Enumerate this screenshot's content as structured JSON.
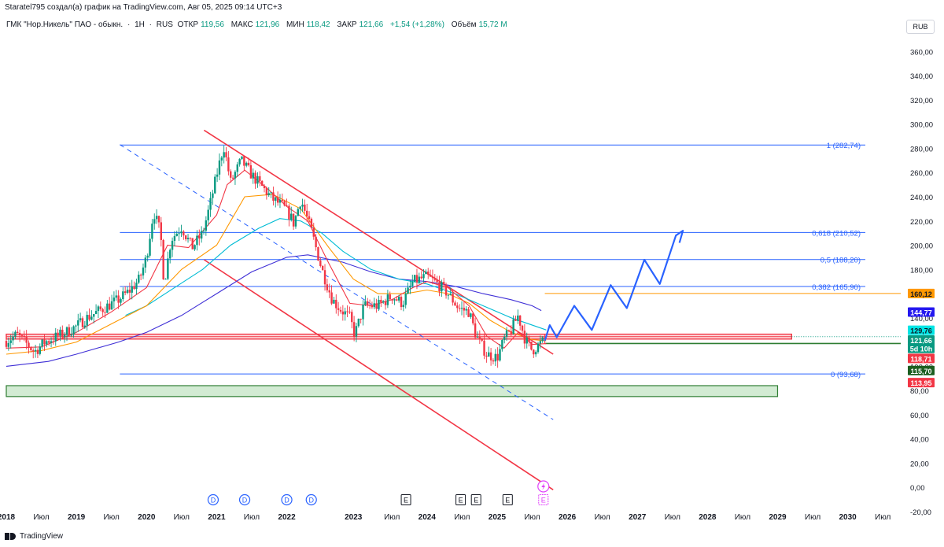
{
  "header": {
    "author_line": "Staratel795 создал(а) график на TradingView.com, Авг 05, 2025 09:14 UTC+3"
  },
  "legend": {
    "symbol": "ГМК \"Нор.Никель\" ПАО - обыкн.",
    "sep": "·",
    "interval": "1Н",
    "exchange": "RUS",
    "open_label": "ОТКР",
    "open_value": "119,56",
    "high_label": "МАКС",
    "high_value": "121,96",
    "low_label": "МИН",
    "low_value": "118,42",
    "close_label": "ЗАКР",
    "close_value": "121,66",
    "change": "+1,54 (+1,28%)",
    "volume_label": "Объём",
    "volume_value": "15,72 M"
  },
  "currency_button": "RUB",
  "brand": "TradingView",
  "colors": {
    "candle_up": "#089981",
    "candle_down": "#f23645",
    "fib": "#2962ff",
    "channel": "#f23645",
    "forecast": "#2962ff",
    "ema_fast": "#f23645",
    "ema_mid": "#ff9800",
    "ema_slow": "#00bcd4",
    "ma_long": "#3f2fd6",
    "support_green": "#2e7d32",
    "resistance_red": "#f23645"
  },
  "chart_data": {
    "type": "candlestick",
    "title": "ГМК \"Нор.Никель\" ПАО - обыкн.",
    "y_scale": "linear",
    "ylim": [
      -20,
      370
    ],
    "ytick_labels": [
      "360,00",
      "340,00",
      "320,00",
      "300,00",
      "280,00",
      "260,00",
      "240,00",
      "220,00",
      "200,00",
      "180,00",
      "160,00",
      "140,00",
      "120,00",
      "100,00",
      "80,00",
      "60,00",
      "40,00",
      "20,00",
      "0,00",
      "-20,00"
    ],
    "ytick_values": [
      360,
      340,
      320,
      300,
      280,
      260,
      240,
      220,
      200,
      180,
      160,
      140,
      120,
      100,
      80,
      60,
      40,
      20,
      0,
      -20
    ],
    "xlim": [
      2018.0,
      2030.7
    ],
    "x_tick_labels": [
      "2018",
      "Июл",
      "2019",
      "Июл",
      "2020",
      "Июл",
      "2021",
      "Июл",
      "2022",
      "2023",
      "Июл",
      "2024",
      "Июл",
      "2025",
      "Июл",
      "2026",
      "Июл",
      "2027",
      "Июл",
      "2028",
      "Июл",
      "2029",
      "Июл",
      "2030",
      "Июл"
    ],
    "x_tick_values": [
      2018.0,
      2018.5,
      2019.0,
      2019.5,
      2020.0,
      2020.5,
      2021.0,
      2021.5,
      2022.0,
      2022.95,
      2023.5,
      2024.0,
      2024.5,
      2025.0,
      2025.5,
      2026.0,
      2026.5,
      2027.0,
      2027.5,
      2028.0,
      2028.5,
      2029.0,
      2029.5,
      2030.0,
      2030.5
    ],
    "price_path": [
      [
        2018.0,
        121
      ],
      [
        2018.15,
        126
      ],
      [
        2018.3,
        118
      ],
      [
        2018.4,
        112
      ],
      [
        2018.55,
        120
      ],
      [
        2018.7,
        124
      ],
      [
        2018.85,
        128
      ],
      [
        2019.0,
        133
      ],
      [
        2019.15,
        140
      ],
      [
        2019.3,
        145
      ],
      [
        2019.45,
        150
      ],
      [
        2019.6,
        155
      ],
      [
        2019.75,
        162
      ],
      [
        2019.9,
        172
      ],
      [
        2020.0,
        190
      ],
      [
        2020.1,
        228
      ],
      [
        2020.2,
        210
      ],
      [
        2020.25,
        168
      ],
      [
        2020.35,
        205
      ],
      [
        2020.5,
        215
      ],
      [
        2020.65,
        198
      ],
      [
        2020.8,
        210
      ],
      [
        2020.9,
        232
      ],
      [
        2021.0,
        258
      ],
      [
        2021.1,
        282
      ],
      [
        2021.2,
        252
      ],
      [
        2021.35,
        270
      ],
      [
        2021.5,
        258
      ],
      [
        2021.65,
        248
      ],
      [
        2021.8,
        238
      ],
      [
        2021.95,
        232
      ],
      [
        2022.05,
        224
      ],
      [
        2022.1,
        218
      ],
      [
        2022.2,
        238
      ],
      [
        2022.35,
        212
      ],
      [
        2022.5,
        180
      ],
      [
        2022.65,
        155
      ],
      [
        2022.75,
        148
      ],
      [
        2022.9,
        140
      ],
      [
        2022.97,
        126
      ],
      [
        2023.1,
        150
      ],
      [
        2023.3,
        150
      ],
      [
        2023.5,
        158
      ],
      [
        2023.65,
        152
      ],
      [
        2023.8,
        170
      ],
      [
        2024.0,
        174
      ],
      [
        2024.15,
        168
      ],
      [
        2024.3,
        160
      ],
      [
        2024.45,
        148
      ],
      [
        2024.6,
        145
      ],
      [
        2024.7,
        125
      ],
      [
        2024.85,
        110
      ],
      [
        2025.0,
        107
      ],
      [
        2025.1,
        122
      ],
      [
        2025.2,
        130
      ],
      [
        2025.3,
        142
      ],
      [
        2025.4,
        122
      ],
      [
        2025.5,
        113
      ],
      [
        2025.6,
        118
      ],
      [
        2025.68,
        121.66
      ]
    ],
    "ema_fast": [
      [
        2018.0,
        115
      ],
      [
        2018.5,
        116
      ],
      [
        2019.0,
        128
      ],
      [
        2019.5,
        145
      ],
      [
        2020.0,
        165
      ],
      [
        2020.3,
        200
      ],
      [
        2020.6,
        198
      ],
      [
        2021.0,
        225
      ],
      [
        2021.15,
        250
      ],
      [
        2021.4,
        262
      ],
      [
        2021.7,
        248
      ],
      [
        2022.0,
        232
      ],
      [
        2022.3,
        220
      ],
      [
        2022.6,
        185
      ],
      [
        2022.9,
        152
      ],
      [
        2023.2,
        150
      ],
      [
        2023.5,
        155
      ],
      [
        2023.8,
        165
      ],
      [
        2024.0,
        170
      ],
      [
        2024.3,
        165
      ],
      [
        2024.6,
        150
      ],
      [
        2024.85,
        125
      ],
      [
        2025.1,
        115
      ],
      [
        2025.3,
        128
      ],
      [
        2025.5,
        118
      ],
      [
        2025.7,
        118.7
      ]
    ],
    "ema_mid": [
      [
        2018.0,
        110
      ],
      [
        2018.5,
        113
      ],
      [
        2019.0,
        120
      ],
      [
        2019.5,
        135
      ],
      [
        2020.0,
        150
      ],
      [
        2020.5,
        180
      ],
      [
        2021.0,
        200
      ],
      [
        2021.4,
        240
      ],
      [
        2021.8,
        242
      ],
      [
        2022.2,
        230
      ],
      [
        2022.6,
        198
      ],
      [
        2022.95,
        172
      ],
      [
        2023.3,
        160
      ],
      [
        2023.7,
        160
      ],
      [
        2024.0,
        163
      ],
      [
        2024.3,
        160
      ],
      [
        2024.6,
        152
      ],
      [
        2024.9,
        138
      ],
      [
        2025.2,
        128
      ],
      [
        2025.5,
        122
      ],
      [
        2025.7,
        121
      ]
    ],
    "ema_slow": [
      [
        2019.7,
        142
      ],
      [
        2020.0,
        150
      ],
      [
        2020.4,
        165
      ],
      [
        2020.8,
        180
      ],
      [
        2021.2,
        200
      ],
      [
        2021.6,
        214
      ],
      [
        2021.9,
        222
      ],
      [
        2022.2,
        220
      ],
      [
        2022.5,
        210
      ],
      [
        2022.8,
        195
      ],
      [
        2023.2,
        180
      ],
      [
        2023.6,
        172
      ],
      [
        2024.0,
        168
      ],
      [
        2024.4,
        160
      ],
      [
        2024.8,
        150
      ],
      [
        2025.2,
        140
      ],
      [
        2025.7,
        130
      ]
    ],
    "ma_long": [
      [
        2018.0,
        100
      ],
      [
        2018.6,
        104
      ],
      [
        2019.0,
        110
      ],
      [
        2019.6,
        120
      ],
      [
        2020.0,
        128
      ],
      [
        2020.5,
        142
      ],
      [
        2021.0,
        160
      ],
      [
        2021.5,
        178
      ],
      [
        2022.0,
        190
      ],
      [
        2022.3,
        192
      ],
      [
        2022.8,
        186
      ],
      [
        2023.2,
        178
      ],
      [
        2023.6,
        172
      ],
      [
        2024.0,
        170
      ],
      [
        2024.4,
        166
      ],
      [
        2024.8,
        160
      ],
      [
        2025.2,
        155
      ],
      [
        2025.5,
        150
      ],
      [
        2025.63,
        146
      ]
    ],
    "fib_levels": [
      {
        "label": "1 (282,74)",
        "value": 282.74
      },
      {
        "label": "0,618 (210,52)",
        "value": 210.52
      },
      {
        "label": "0,5 (188,20)",
        "value": 188.2
      },
      {
        "label": "0,382 (165,90)",
        "value": 165.9
      },
      {
        "label": "0 (93,68)",
        "value": 93.68
      }
    ],
    "fib_x_start": 2019.62,
    "channel_upper": [
      [
        2020.82,
        295
      ],
      [
        2025.8,
        110
      ]
    ],
    "channel_lower": [
      [
        2020.82,
        188
      ],
      [
        2025.8,
        -2
      ]
    ],
    "channel_mid": [
      [
        2019.62,
        283
      ],
      [
        2025.8,
        56
      ]
    ],
    "forecast_path": [
      [
        2025.68,
        121
      ],
      [
        2025.75,
        134
      ],
      [
        2025.85,
        124
      ],
      [
        2026.1,
        150
      ],
      [
        2026.35,
        130
      ],
      [
        2026.62,
        167
      ],
      [
        2026.85,
        148
      ],
      [
        2027.1,
        188
      ],
      [
        2027.32,
        168
      ],
      [
        2027.55,
        208
      ],
      [
        2027.65,
        212
      ],
      [
        2027.6,
        202
      ]
    ],
    "orange_level": {
      "value": 160.12,
      "x_start": 2025.68
    },
    "red_zone": {
      "low": 122.5,
      "high": 126.5,
      "x_end": 2029.2
    },
    "green_line": {
      "value": 118.8,
      "x_start": 2025.68
    },
    "green_zone": {
      "low": 75,
      "high": 84,
      "x_end": 2029.0
    },
    "dotted_last": {
      "value": 124.5,
      "x_start": 2029.2
    },
    "price_badges": [
      {
        "label": "160,12",
        "value": 160.12,
        "bg": "#ff9800",
        "fg": "#131722"
      },
      {
        "label": "144,77",
        "value": 144.77,
        "bg": "#2418f0",
        "fg": "#ffffff"
      },
      {
        "label": "129,76",
        "value": 129.76,
        "bg": "#00e5e5",
        "fg": "#131722"
      },
      {
        "label": "121,66",
        "value": 121.66,
        "bg": "#089981",
        "fg": "#ffffff"
      },
      {
        "label": "5d 10h",
        "value": 114.8,
        "bg": "#089981",
        "fg": "#ffffff"
      },
      {
        "label": "118,71",
        "value": 106.5,
        "bg": "#f23645",
        "fg": "#ffffff"
      },
      {
        "label": "115,70",
        "value": 96.5,
        "bg": "#1b5e20",
        "fg": "#ffffff"
      },
      {
        "label": "113,95",
        "value": 86.5,
        "bg": "#f23645",
        "fg": "#ffffff"
      }
    ],
    "events": [
      {
        "label": "D",
        "x": 2020.95,
        "kind": "dividend"
      },
      {
        "label": "D",
        "x": 2021.4,
        "kind": "dividend"
      },
      {
        "label": "D",
        "x": 2022.0,
        "kind": "dividend"
      },
      {
        "label": "D",
        "x": 2022.35,
        "kind": "dividend"
      },
      {
        "label": "E",
        "x": 2023.7,
        "kind": "earnings"
      },
      {
        "label": "E",
        "x": 2024.48,
        "kind": "earnings"
      },
      {
        "label": "E",
        "x": 2024.7,
        "kind": "earnings"
      },
      {
        "label": "E",
        "x": 2025.15,
        "kind": "earnings"
      },
      {
        "label": "E",
        "x": 2025.66,
        "kind": "earnings-upcoming"
      }
    ],
    "lightning_event": {
      "x": 2025.66,
      "kind": "split"
    }
  }
}
